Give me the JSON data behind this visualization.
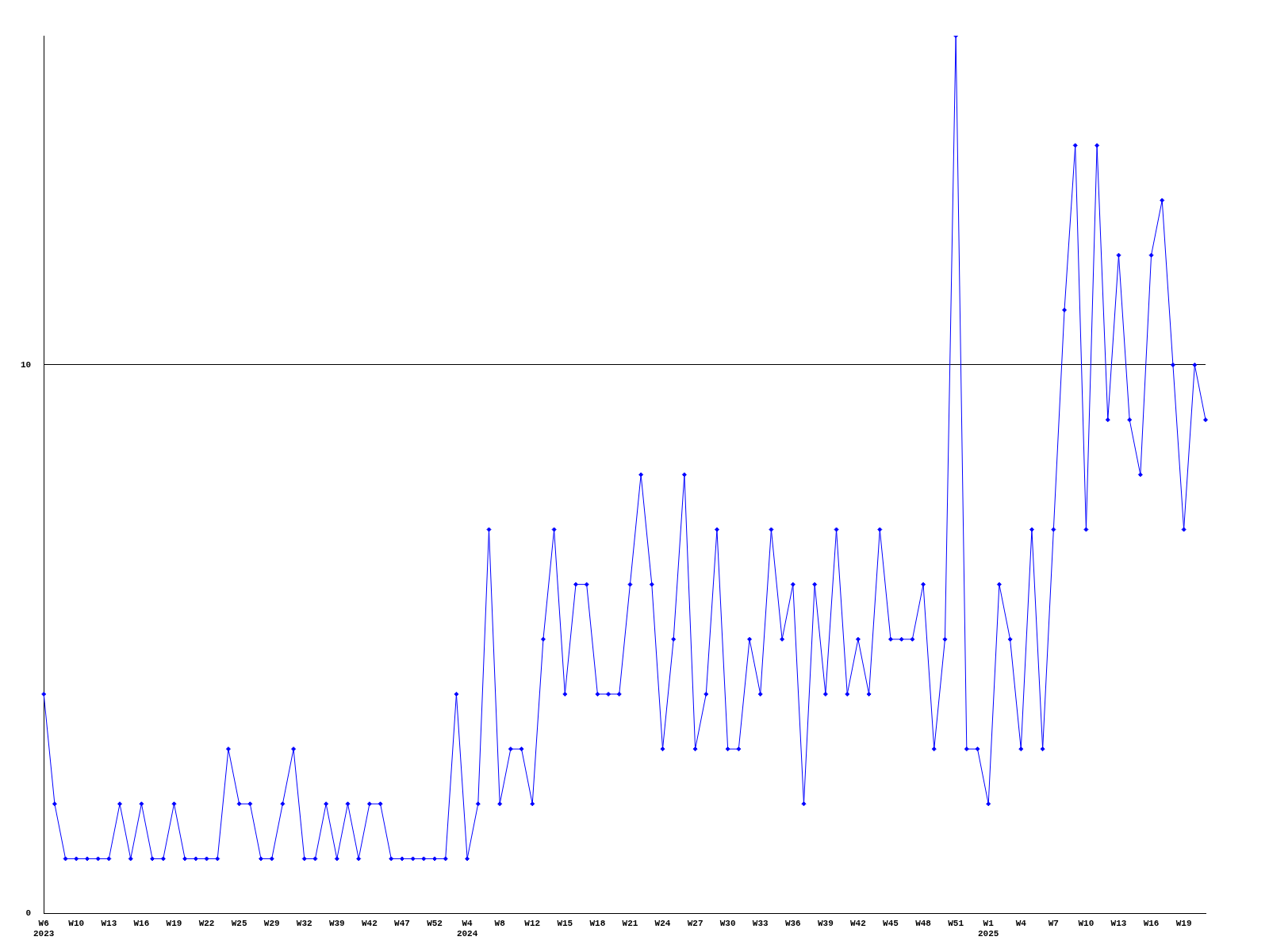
{
  "chart_data": {
    "type": "line",
    "categories": [
      "W6\n2023",
      null,
      null,
      "W10",
      null,
      null,
      "W13",
      null,
      null,
      "W16",
      null,
      null,
      "W19",
      null,
      null,
      "W22",
      null,
      null,
      "W25",
      null,
      null,
      "W29",
      null,
      null,
      "W32",
      null,
      null,
      "W39",
      null,
      null,
      "W42",
      null,
      null,
      "W47",
      null,
      null,
      "W52",
      null,
      null,
      "W4\n2024",
      null,
      null,
      "W8",
      null,
      null,
      "W12",
      null,
      null,
      "W15",
      null,
      null,
      "W18",
      null,
      null,
      "W21",
      null,
      null,
      "W24",
      null,
      null,
      "W27",
      null,
      null,
      "W30",
      null,
      null,
      "W33",
      null,
      null,
      "W36",
      null,
      null,
      "W39",
      null,
      null,
      "W42",
      null,
      null,
      "W45",
      null,
      null,
      "W48",
      null,
      null,
      "W51",
      null,
      null,
      "W1\n2025",
      null,
      null,
      "W4",
      null,
      null,
      "W7",
      null,
      null,
      "W10",
      null,
      null,
      "W13",
      null,
      null,
      "W16",
      null,
      null,
      "W19",
      null,
      null
    ],
    "series": [
      {
        "color": "#0000ff",
        "values": [
          4,
          2,
          1,
          1,
          1,
          1,
          1,
          2,
          1,
          2,
          1,
          1,
          2,
          1,
          1,
          1,
          1,
          3,
          2,
          2,
          1,
          1,
          2,
          3,
          1,
          1,
          2,
          1,
          2,
          1,
          2,
          2,
          1,
          1,
          1,
          1,
          1,
          1,
          4,
          1,
          2,
          7,
          2,
          3,
          3,
          2,
          5,
          7,
          4,
          6,
          6,
          4,
          4,
          4,
          6,
          8,
          6,
          3,
          5,
          8,
          3,
          4,
          7,
          3,
          3,
          5,
          4,
          7,
          5,
          6,
          2,
          6,
          4,
          7,
          4,
          5,
          4,
          7,
          5,
          5,
          5,
          6,
          3,
          5,
          16,
          3,
          3,
          2,
          6,
          5,
          3,
          7,
          3,
          7,
          11,
          14,
          7,
          14,
          9,
          12,
          9,
          8,
          12,
          13,
          10,
          7,
          10,
          9
        ]
      }
    ],
    "ylim": [
      0,
      16
    ],
    "yticks": [
      0,
      10
    ],
    "grid": "y",
    "marker": "diamond",
    "legend": false
  }
}
